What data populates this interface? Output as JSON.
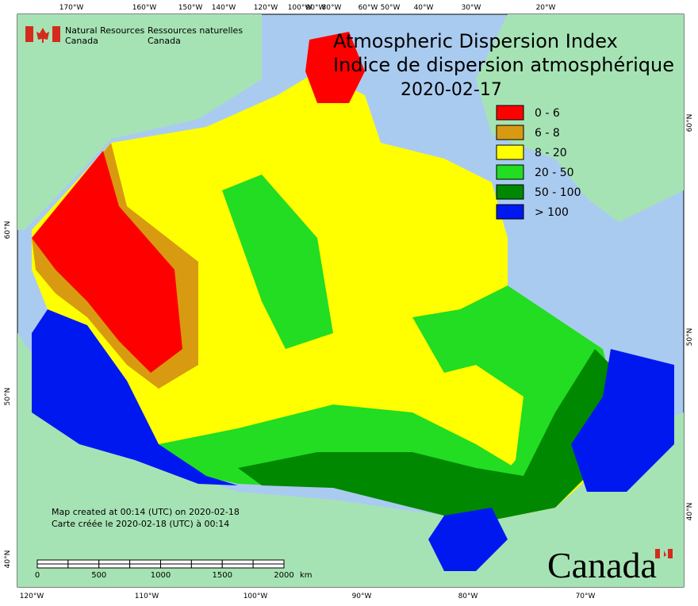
{
  "header": {
    "agency_en": "Natural Resources",
    "agency_en2": "Canada",
    "agency_fr": "Ressources naturelles",
    "agency_fr2": "Canada"
  },
  "title": {
    "line1": "Atmospheric Dispersion Index",
    "line2": "Indice de dispersion atmosphérique",
    "date": "2020-02-17"
  },
  "legend": [
    {
      "label": "0 - 6",
      "color": "#ff0000"
    },
    {
      "label": "6 - 8",
      "color": "#d89a10"
    },
    {
      "label": "8 - 20",
      "color": "#ffff00"
    },
    {
      "label": "20 - 50",
      "color": "#22dd22"
    },
    {
      "label": "50 - 100",
      "color": "#008800"
    },
    {
      "label": "> 100",
      "color": "#0018f0"
    }
  ],
  "top_labels": [
    "170°W",
    "160°W",
    "150°W",
    "140°W",
    "120°W",
    "100°W",
    "90°W",
    "80°W",
    "60°W",
    "50°W",
    "40°W",
    "30°W",
    "20°W"
  ],
  "bottom_labels": [
    "120°W",
    "110°W",
    "100°W",
    "90°W",
    "80°W",
    "70°W"
  ],
  "left_labels": [
    "60°N",
    "50°N",
    "40°N"
  ],
  "right_labels": [
    "60°N",
    "50°N",
    "40°N"
  ],
  "notes": [
    "Map created at 00:14 (UTC) on 2020-02-18",
    "Carte créée le 2020-02-18 (UTC) à 00:14"
  ],
  "scale_bar": {
    "labels": [
      "0",
      "500",
      "1000",
      "1500",
      "2000"
    ],
    "unit": "km"
  },
  "wordmark": "Canada"
}
